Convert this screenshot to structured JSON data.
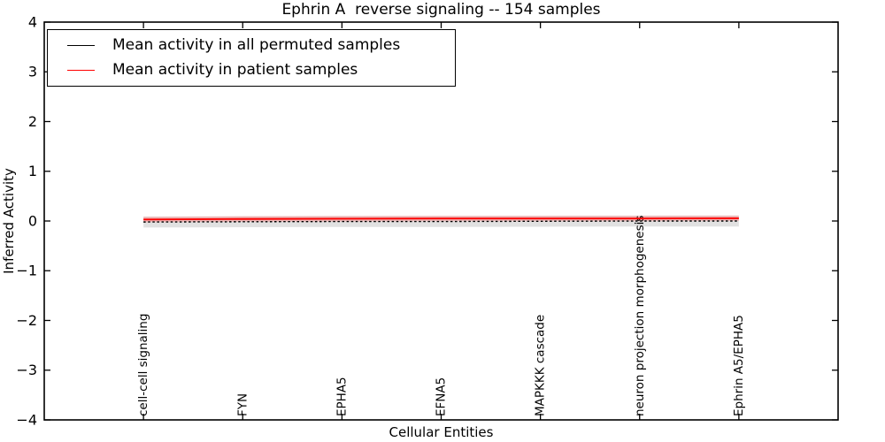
{
  "chart_data": {
    "type": "line",
    "title": "Ephrin A  reverse signaling -- 154 samples",
    "xlabel": "Cellular Entities",
    "ylabel": "Inferred Activity",
    "ylim": [
      -4,
      4
    ],
    "yticks": [
      4,
      3,
      2,
      1,
      0,
      -1,
      -2,
      -3,
      -4
    ],
    "yticklabels": [
      "4",
      "3",
      "2",
      "1",
      "0",
      "−1",
      "−2",
      "−3",
      "−4"
    ],
    "grid": false,
    "legend_position": "upper left",
    "categories": [
      "cell-cell signaling",
      "FYN",
      "EPHA5",
      "EFNA5",
      "MAPKKK cascade",
      "neuron projection morphogenesis",
      "Ephrin A5/EPHA5"
    ],
    "series": [
      {
        "key": "permuted",
        "name": "Mean activity in all permuted samples",
        "color": "#000000",
        "style": "dotted",
        "values": [
          -0.02,
          -0.015,
          -0.01,
          -0.01,
          -0.005,
          0.0,
          0.0
        ],
        "band_halfwidth": 0.11,
        "band_color": "#bdbdbd",
        "band_opacity": 0.45
      },
      {
        "key": "patient",
        "name": "Mean activity in patient samples",
        "color": "#ff0000",
        "style": "solid",
        "values": [
          0.03,
          0.04,
          0.045,
          0.05,
          0.05,
          0.05,
          0.055
        ],
        "band_halfwidth": 0.055,
        "band_color": "#ff6666",
        "band_opacity": 0.35
      }
    ]
  }
}
